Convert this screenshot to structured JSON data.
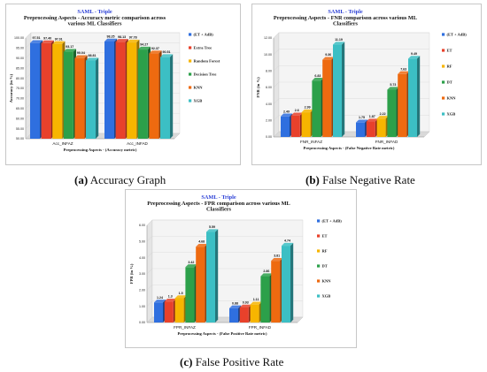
{
  "captions": [
    {
      "letter": "(a)",
      "text": "Accuracy Graph"
    },
    {
      "letter": "(b)",
      "text": "False Negative Rate"
    },
    {
      "letter": "(c)",
      "text": "False Positive Rate"
    }
  ],
  "colors": {
    "et_adb": "#2f6fdf",
    "et": "#e8412b",
    "rf": "#f7b500",
    "dt": "#2ca04a",
    "knn": "#ee6a10",
    "xgb": "#3cbfc4"
  },
  "chart_data": [
    {
      "type": "bar",
      "title": "SAML - Triple",
      "subtitle": "Preprocessing Aspects - Accuracy metric comparison across various ML Classifiers",
      "xlabel": "Preprocessing Aspects - (Accuracy metric)",
      "ylabel": "Accuracy (in %)",
      "ylim": [
        50,
        100
      ],
      "ytick_labels": [
        "50.00",
        "55.00",
        "60.00",
        "65.00",
        "70.00",
        "75.00",
        "80.00",
        "85.00",
        "90.00",
        "95.00",
        "100.00"
      ],
      "categories": [
        "Acc_INFAZ",
        "Acc_INFAD"
      ],
      "legend_position": "right",
      "series": [
        {
          "name": "(ET + AdB)",
          "values": [
            97.51,
            98.25
          ],
          "labels": [
            "97.51",
            "98.25"
          ]
        },
        {
          "name": "Extra Tree",
          "values": [
            97.4,
            98.13
          ],
          "labels": [
            "97.40",
            "98.13"
          ]
        },
        {
          "name": "Random Forest",
          "values": [
            97.01,
            97.78
          ],
          "labels": [
            "97.01",
            "97.78"
          ]
        },
        {
          "name": "Decision Tree",
          "values": [
            93.17,
            94.27
          ],
          "labels": [
            "93.17",
            "94.27"
          ]
        },
        {
          "name": "KNN",
          "values": [
            90.04,
            92.37
          ],
          "labels": [
            "90.04",
            "92.37"
          ]
        },
        {
          "name": "XGB",
          "values": [
            88.81,
            90.51
          ],
          "labels": [
            "88.81",
            "90.51"
          ]
        }
      ]
    },
    {
      "type": "bar",
      "title": "SAML - Triple",
      "subtitle": "Preprocessing Aspects - FNR comparison across various ML Classifiers",
      "xlabel": "Preprocessing Aspects - (False Negative Rate metric)",
      "ylabel": "FNR (in %)",
      "ylim": [
        0,
        12
      ],
      "ytick_labels": [
        "0.00",
        "2.00",
        "4.00",
        "6.00",
        "8.00",
        "10.00",
        "12.00"
      ],
      "categories": [
        "FNR_INFAZ",
        "FNR_INFAD"
      ],
      "legend_position": "right",
      "series": [
        {
          "name": "(ET + AdB)",
          "values": [
            2.49,
            1.75
          ],
          "labels": [
            "2.49",
            "1.75"
          ]
        },
        {
          "name": "ET",
          "values": [
            2.6,
            1.87
          ],
          "labels": [
            "2.6",
            "1.87"
          ]
        },
        {
          "name": "RF",
          "values": [
            2.99,
            2.22
          ],
          "labels": [
            "2.99",
            "2.22"
          ]
        },
        {
          "name": "DT",
          "values": [
            6.83,
            5.73
          ],
          "labels": [
            "6.83",
            "5.73"
          ]
        },
        {
          "name": "KNN",
          "values": [
            9.36,
            7.63
          ],
          "labels": [
            "9.36",
            "7.63"
          ]
        },
        {
          "name": "XGB",
          "values": [
            11.19,
            9.49
          ],
          "labels": [
            "11.19",
            "9.49"
          ]
        }
      ]
    },
    {
      "type": "bar",
      "title": "SAML - Triple",
      "subtitle": "Preprocessing Aspects - FPR comparison across various ML Classifiers",
      "xlabel": "Preprocessing Aspects - (False Positive Rate metric)",
      "ylabel": "FPR (in %)",
      "ylim": [
        0,
        6
      ],
      "ytick_labels": [
        "0.00",
        "1.00",
        "2.00",
        "3.00",
        "4.00",
        "5.00",
        "6.00"
      ],
      "categories": [
        "FPR_INFAZ",
        "FPR_INFAD"
      ],
      "legend_position": "right",
      "series": [
        {
          "name": "(ET + AdB)",
          "values": [
            1.24,
            0.88
          ],
          "labels": [
            "1.24",
            "0.88"
          ]
        },
        {
          "name": "ET",
          "values": [
            1.3,
            0.93
          ],
          "labels": [
            "1.3",
            "0.93"
          ]
        },
        {
          "name": "RF",
          "values": [
            1.5,
            1.11
          ],
          "labels": [
            "1.5",
            "1.11"
          ]
        },
        {
          "name": "DT",
          "values": [
            3.42,
            2.86
          ],
          "labels": [
            "3.42",
            "2.86"
          ]
        },
        {
          "name": "KNN",
          "values": [
            4.68,
            3.81
          ],
          "labels": [
            "4.68",
            "3.81"
          ]
        },
        {
          "name": "XGB",
          "values": [
            5.59,
            4.74
          ],
          "labels": [
            "5.59",
            "4.74"
          ]
        }
      ]
    }
  ]
}
